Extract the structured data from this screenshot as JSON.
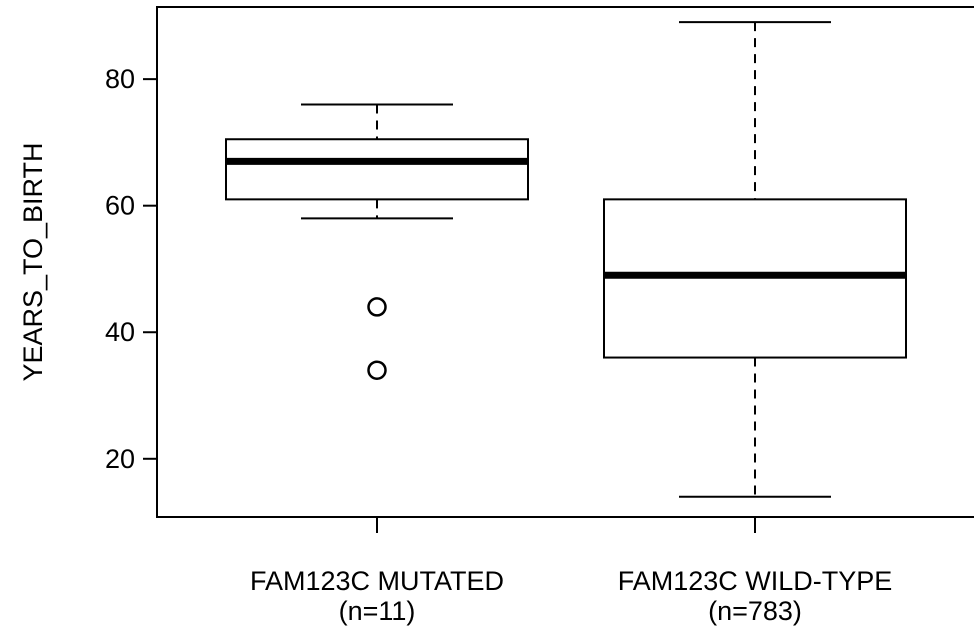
{
  "chart_data": {
    "type": "boxplot",
    "ylabel": "YEARS_TO_BIRTH",
    "xlabel": "",
    "ylim": [
      10.8,
      91.4
    ],
    "yticks": [
      20,
      40,
      60,
      80
    ],
    "grid": false,
    "groups": [
      {
        "label": "FAM123C MUTATED",
        "n_label": "(n=11)",
        "whisker_low": 58,
        "q1": 61,
        "median": 67,
        "q3": 70.5,
        "whisker_high": 76,
        "outliers": [
          44,
          34
        ]
      },
      {
        "label": "FAM123C WILD-TYPE",
        "n_label": "(n=783)",
        "whisker_low": 14,
        "q1": 36,
        "median": 49,
        "q3": 61,
        "whisker_high": 89,
        "outliers": []
      }
    ]
  }
}
